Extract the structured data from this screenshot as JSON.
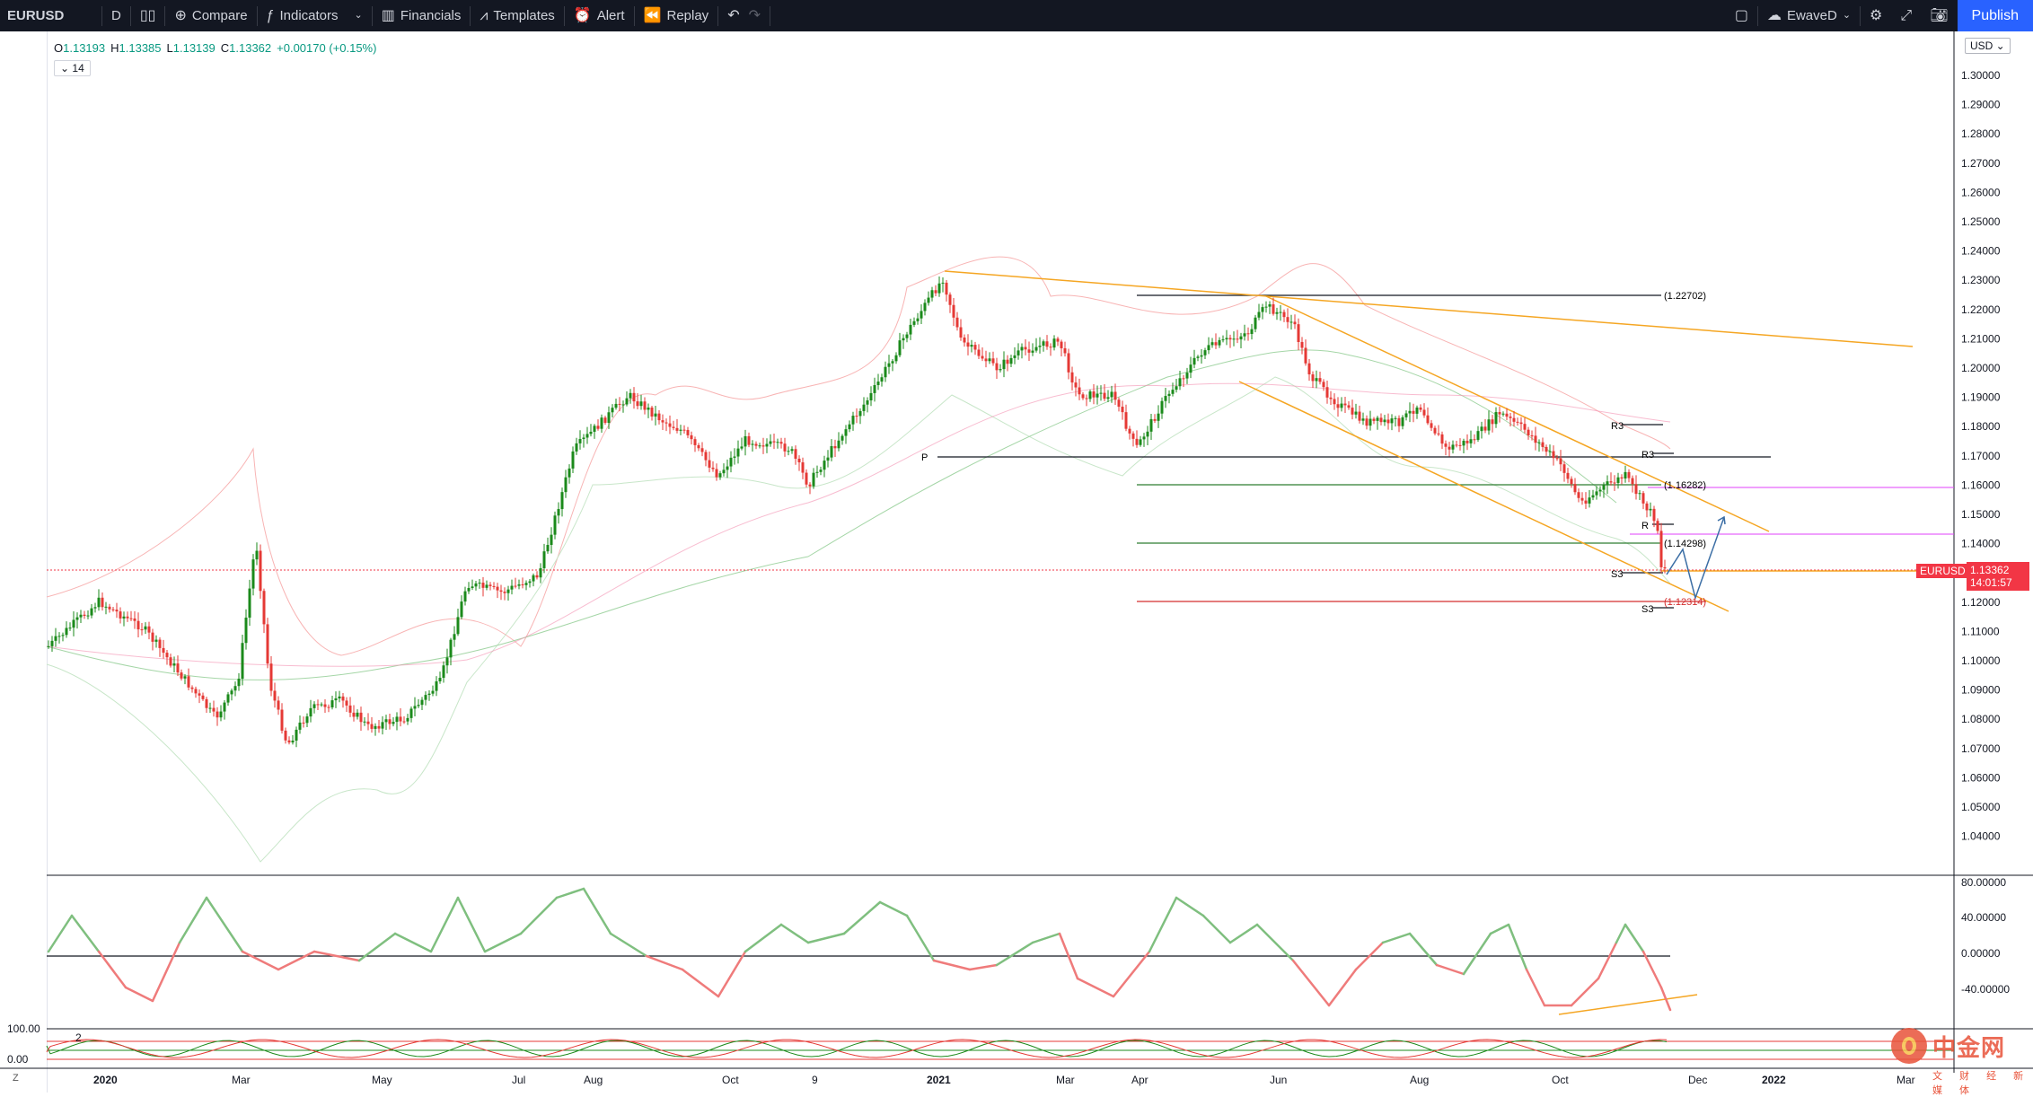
{
  "toolbar": {
    "symbol": "EURUSD",
    "interval": "D",
    "compare": "Compare",
    "indicators": "Indicators",
    "financials": "Financials",
    "templates": "Templates",
    "alert": "Alert",
    "replay": "Replay",
    "layout_name": "EwaveD",
    "publish": "Publish"
  },
  "legend": {
    "o": "O",
    "o_val": "1.13193",
    "h": "H",
    "h_val": "1.13385",
    "l": "L",
    "l_val": "1.13139",
    "c": "C",
    "c_val": "1.13362",
    "change": "+0.00170 (+0.15%)",
    "length": "14"
  },
  "currency": "USD",
  "last_price": {
    "symbol": "EURUSD",
    "price": "1.13362",
    "countdown": "14:01:57"
  },
  "price_axis": [
    "1.30000",
    "1.29000",
    "1.28000",
    "1.27000",
    "1.26000",
    "1.25000",
    "1.24000",
    "1.23000",
    "1.22000",
    "1.21000",
    "1.20000",
    "1.19000",
    "1.18000",
    "1.17000",
    "1.16000",
    "1.15000",
    "1.14000",
    "1.13000",
    "1.12000",
    "1.11000",
    "1.10000",
    "1.09000",
    "1.08000",
    "1.07000",
    "1.06000",
    "1.05000",
    "1.04000"
  ],
  "osc_axis": [
    "80.00000",
    "40.00000",
    "0.00000",
    "-40.00000"
  ],
  "osc2_axis": [
    "100.00",
    "0.00"
  ],
  "osc2_label": "2",
  "time_axis": [
    "2020",
    "Mar",
    "May",
    "Jul",
    "Aug",
    "Oct",
    "9",
    "2021",
    "Mar",
    "Apr",
    "Jun",
    "Aug",
    "Oct",
    "Dec",
    "2022",
    "Mar"
  ],
  "annotations": {
    "p": "P",
    "r3_a": "R3",
    "r3_b": "R3",
    "s3_a": "S3",
    "s3_b": "S3",
    "r_small": "R",
    "lvl_1": "(1.22702)",
    "lvl_2": "(1.16282)",
    "lvl_3": "(1.14298)",
    "lvl_4": "(1.12314)"
  },
  "watermark": {
    "brand": "中金网",
    "sub": "文 财 经 新 媒 体"
  },
  "colors": {
    "up": "#1b8a1b",
    "down": "#e53935",
    "channel": "#f5a623",
    "accent": "#2962ff"
  },
  "chart_data": {
    "type": "candlestick",
    "symbol": "EURUSD",
    "interval": "D",
    "ylim": [
      1.03,
      1.31
    ],
    "pivot_levels": [
      1.22702,
      1.16282,
      1.14298,
      1.12314
    ],
    "oscillator_range": [
      -60,
      90
    ]
  }
}
